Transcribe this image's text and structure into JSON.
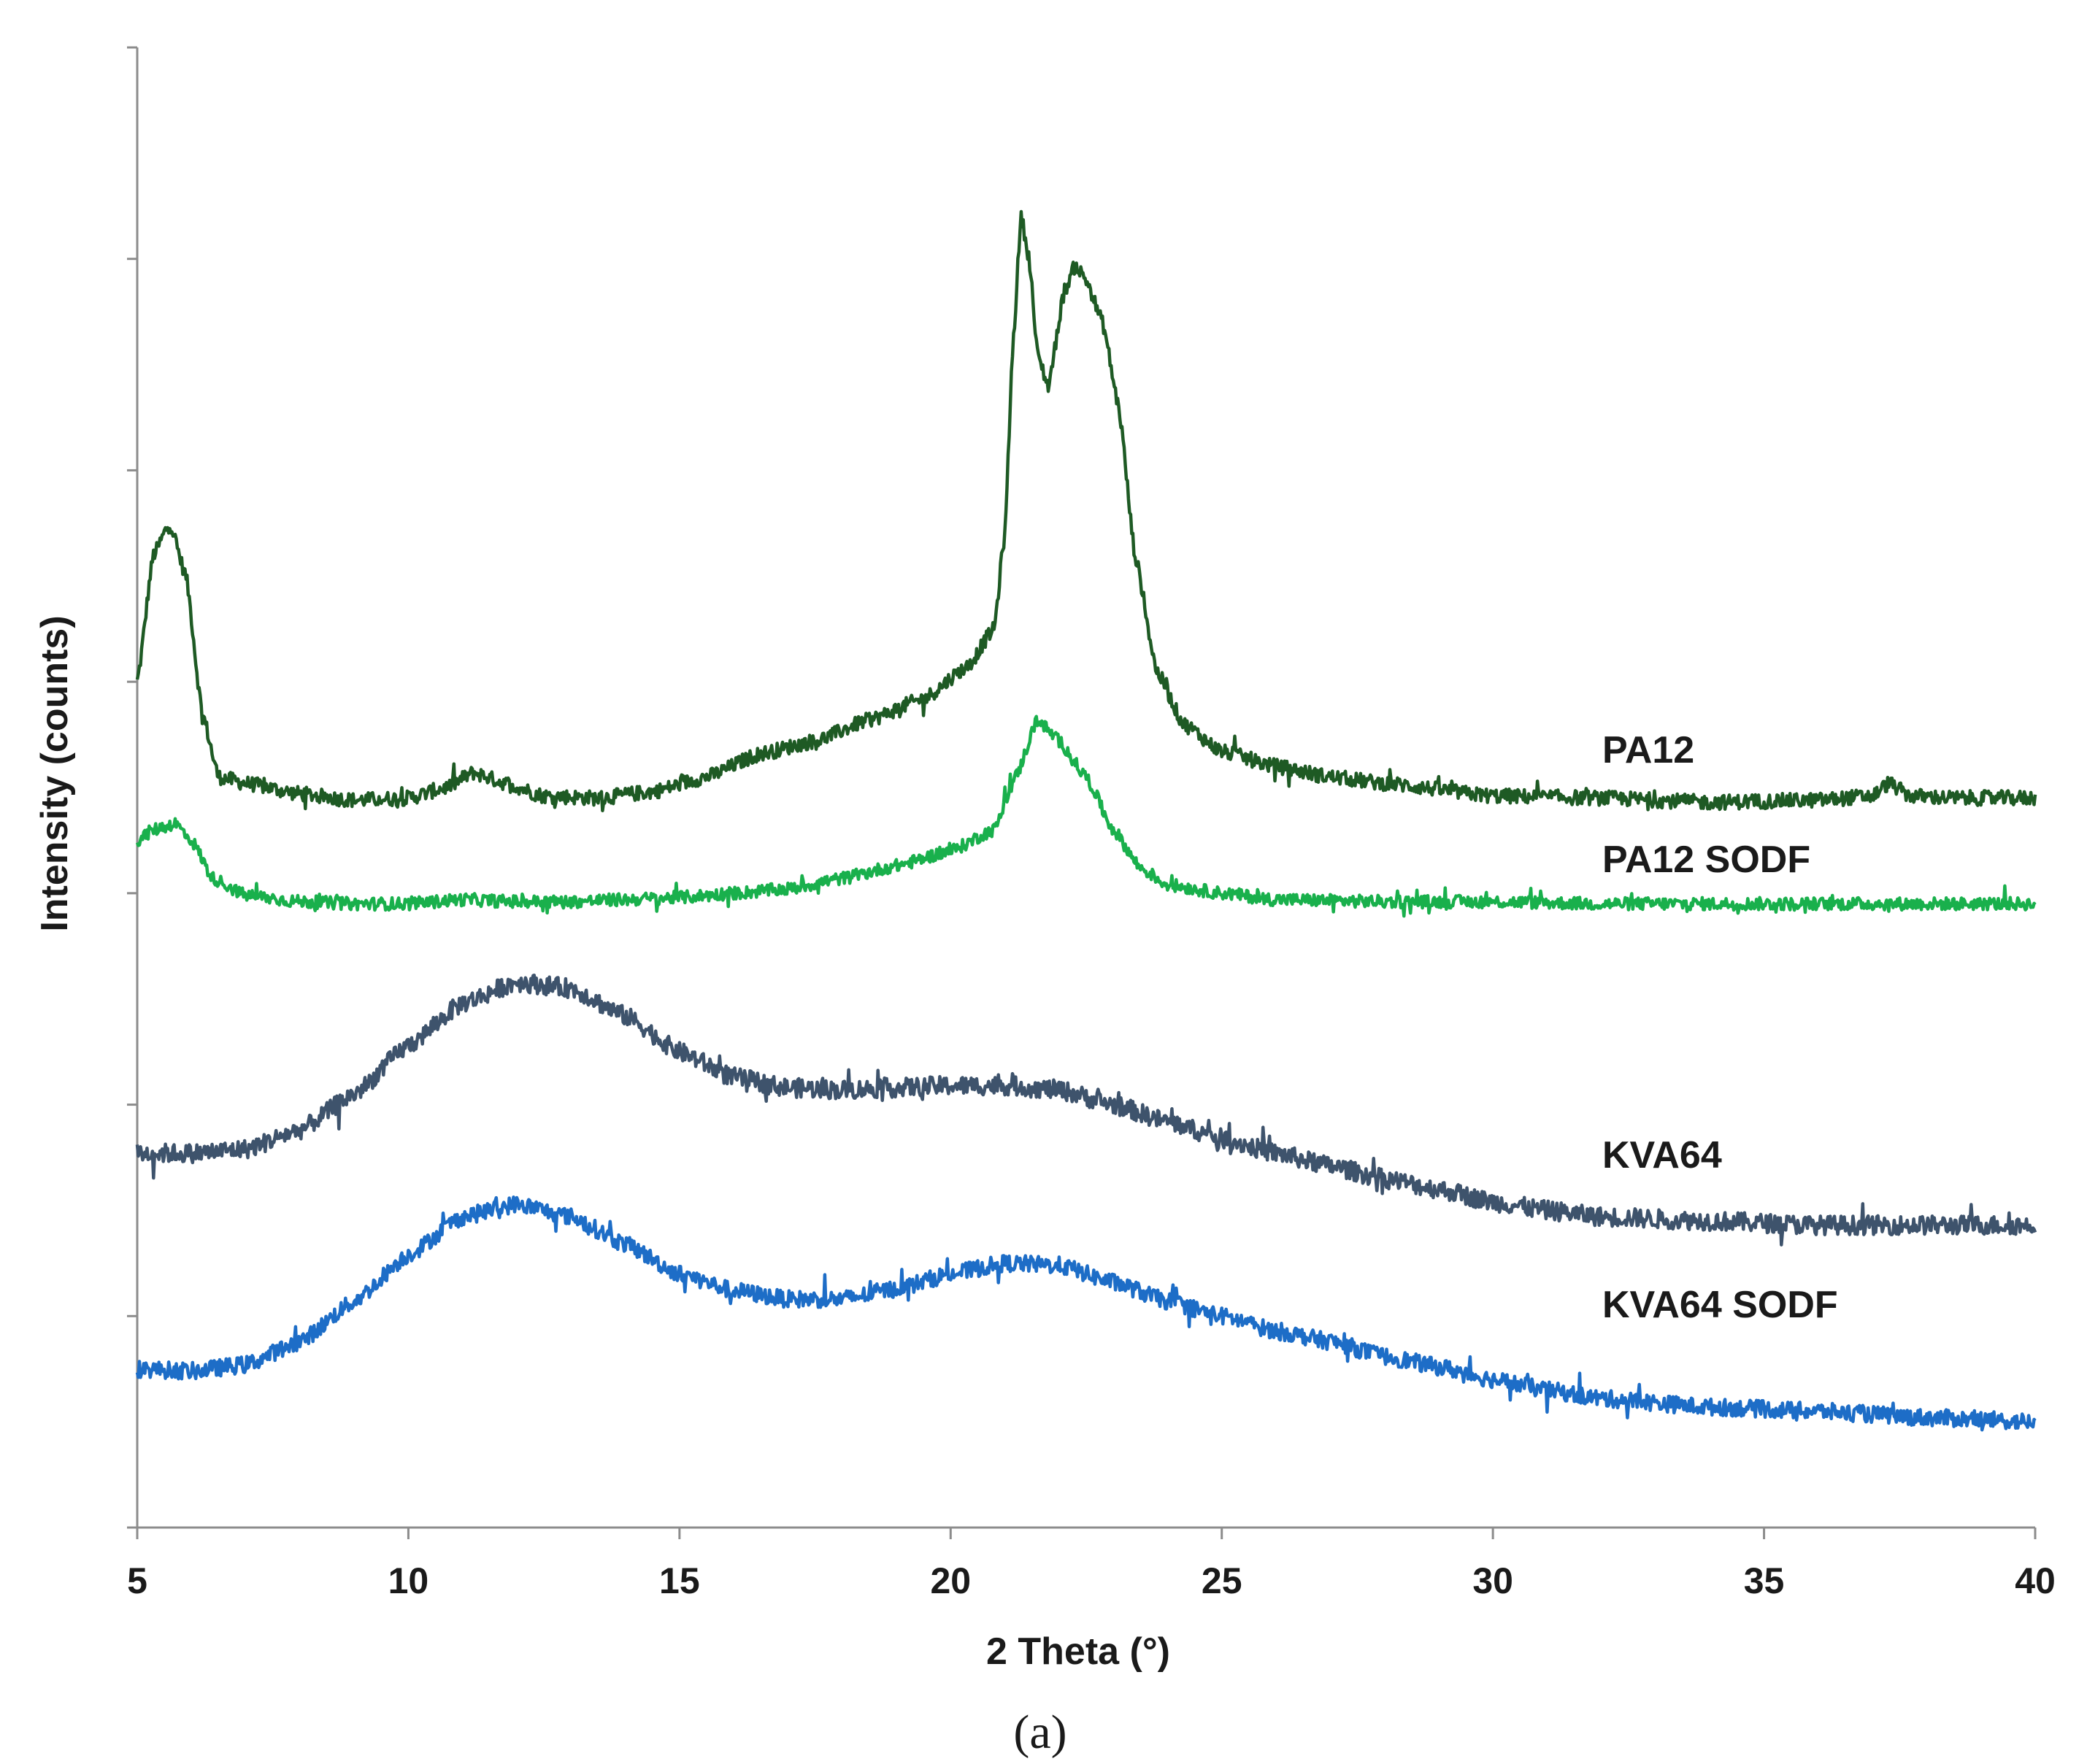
{
  "chart_data": {
    "type": "line",
    "title": "",
    "xlabel": "2 Theta (°)",
    "ylabel": "Intensity (counts)",
    "xlim": [
      5,
      40
    ],
    "x_ticks": [
      5,
      10,
      15,
      20,
      25,
      30,
      35,
      40
    ],
    "x_tick_labels": [
      "5",
      "10",
      "15",
      "20",
      "25",
      "30",
      "35",
      "40"
    ],
    "ylim": [
      0,
      7
    ],
    "y_ticks": [
      0,
      1,
      2,
      3,
      4,
      5,
      6,
      7
    ],
    "y_tick_labels_shown": false,
    "grid": false,
    "legend": "inline labels at right",
    "caption": "(a)",
    "series": [
      {
        "name": "PA12",
        "label": "PA12",
        "color": "#1e5a24",
        "noise": 0.035,
        "points": [
          [
            5,
            4.0
          ],
          [
            5.3,
            4.6
          ],
          [
            5.6,
            4.75
          ],
          [
            5.9,
            4.5
          ],
          [
            6.2,
            3.85
          ],
          [
            6.5,
            3.55
          ],
          [
            7,
            3.52
          ],
          [
            8,
            3.47
          ],
          [
            9,
            3.44
          ],
          [
            10,
            3.45
          ],
          [
            10.7,
            3.5
          ],
          [
            11.2,
            3.57
          ],
          [
            11.8,
            3.52
          ],
          [
            12.5,
            3.46
          ],
          [
            13.5,
            3.45
          ],
          [
            14.5,
            3.48
          ],
          [
            15.5,
            3.55
          ],
          [
            16.5,
            3.66
          ],
          [
            17.5,
            3.72
          ],
          [
            18.5,
            3.82
          ],
          [
            19.5,
            3.92
          ],
          [
            20.3,
            4.07
          ],
          [
            20.8,
            4.25
          ],
          [
            21.0,
            4.7
          ],
          [
            21.15,
            5.6
          ],
          [
            21.3,
            6.2
          ],
          [
            21.45,
            6.0
          ],
          [
            21.6,
            5.55
          ],
          [
            21.8,
            5.4
          ],
          [
            22.1,
            5.85
          ],
          [
            22.3,
            5.97
          ],
          [
            22.5,
            5.9
          ],
          [
            22.8,
            5.7
          ],
          [
            23.1,
            5.3
          ],
          [
            23.4,
            4.6
          ],
          [
            23.8,
            4.05
          ],
          [
            24.3,
            3.8
          ],
          [
            25,
            3.67
          ],
          [
            26,
            3.6
          ],
          [
            27,
            3.55
          ],
          [
            28,
            3.52
          ],
          [
            30,
            3.46
          ],
          [
            32,
            3.45
          ],
          [
            34,
            3.43
          ],
          [
            36,
            3.44
          ],
          [
            37,
            3.46
          ],
          [
            37.3,
            3.52
          ],
          [
            37.7,
            3.46
          ],
          [
            38.5,
            3.45
          ],
          [
            40,
            3.45
          ]
        ]
      },
      {
        "name": "PA12 SODF",
        "label": "PA12 SODF",
        "color": "#19b04c",
        "noise": 0.03,
        "points": [
          [
            5,
            3.25
          ],
          [
            5.3,
            3.3
          ],
          [
            5.7,
            3.33
          ],
          [
            6,
            3.25
          ],
          [
            6.4,
            3.07
          ],
          [
            7,
            2.99
          ],
          [
            8,
            2.96
          ],
          [
            9,
            2.95
          ],
          [
            10,
            2.95
          ],
          [
            11,
            2.97
          ],
          [
            12,
            2.96
          ],
          [
            13,
            2.96
          ],
          [
            14,
            2.97
          ],
          [
            15,
            2.98
          ],
          [
            16,
            3.0
          ],
          [
            17,
            3.02
          ],
          [
            18,
            3.07
          ],
          [
            19,
            3.13
          ],
          [
            20,
            3.2
          ],
          [
            20.8,
            3.3
          ],
          [
            21.2,
            3.55
          ],
          [
            21.6,
            3.82
          ],
          [
            22,
            3.72
          ],
          [
            22.5,
            3.55
          ],
          [
            23,
            3.3
          ],
          [
            23.5,
            3.12
          ],
          [
            24,
            3.04
          ],
          [
            25,
            3.0
          ],
          [
            26,
            2.97
          ],
          [
            28,
            2.96
          ],
          [
            30,
            2.96
          ],
          [
            32,
            2.95
          ],
          [
            35,
            2.95
          ],
          [
            38,
            2.95
          ],
          [
            40,
            2.95
          ]
        ]
      },
      {
        "name": "KVA64",
        "label": "KVA64",
        "color": "#3e536c",
        "noise": 0.045,
        "points": [
          [
            5,
            1.77
          ],
          [
            6,
            1.77
          ],
          [
            7,
            1.79
          ],
          [
            8,
            1.88
          ],
          [
            9,
            2.05
          ],
          [
            10,
            2.28
          ],
          [
            11,
            2.48
          ],
          [
            12,
            2.58
          ],
          [
            13,
            2.55
          ],
          [
            14,
            2.42
          ],
          [
            15,
            2.25
          ],
          [
            16,
            2.13
          ],
          [
            17,
            2.08
          ],
          [
            18,
            2.07
          ],
          [
            19,
            2.08
          ],
          [
            20,
            2.09
          ],
          [
            21,
            2.09
          ],
          [
            22,
            2.07
          ],
          [
            23,
            2.0
          ],
          [
            24,
            1.92
          ],
          [
            25,
            1.84
          ],
          [
            26,
            1.77
          ],
          [
            27,
            1.71
          ],
          [
            28,
            1.65
          ],
          [
            29,
            1.6
          ],
          [
            30,
            1.54
          ],
          [
            31,
            1.5
          ],
          [
            32,
            1.47
          ],
          [
            34,
            1.45
          ],
          [
            36,
            1.43
          ],
          [
            38,
            1.43
          ],
          [
            40,
            1.43
          ]
        ]
      },
      {
        "name": "KVA64 SODF",
        "label": "KVA64 SODF",
        "color": "#1d6dc7",
        "noise": 0.04,
        "points": [
          [
            5,
            0.75
          ],
          [
            6,
            0.74
          ],
          [
            7,
            0.77
          ],
          [
            8,
            0.88
          ],
          [
            9,
            1.07
          ],
          [
            10,
            1.29
          ],
          [
            11,
            1.47
          ],
          [
            12,
            1.53
          ],
          [
            13,
            1.47
          ],
          [
            14,
            1.34
          ],
          [
            15,
            1.2
          ],
          [
            16,
            1.12
          ],
          [
            17,
            1.08
          ],
          [
            18,
            1.08
          ],
          [
            19,
            1.13
          ],
          [
            20,
            1.2
          ],
          [
            21,
            1.25
          ],
          [
            22,
            1.24
          ],
          [
            23,
            1.16
          ],
          [
            24,
            1.07
          ],
          [
            25,
            1.0
          ],
          [
            26,
            0.93
          ],
          [
            27,
            0.88
          ],
          [
            28,
            0.81
          ],
          [
            29,
            0.76
          ],
          [
            30,
            0.7
          ],
          [
            31,
            0.65
          ],
          [
            32,
            0.61
          ],
          [
            34,
            0.57
          ],
          [
            36,
            0.55
          ],
          [
            38,
            0.52
          ],
          [
            40,
            0.5
          ]
        ]
      }
    ]
  }
}
